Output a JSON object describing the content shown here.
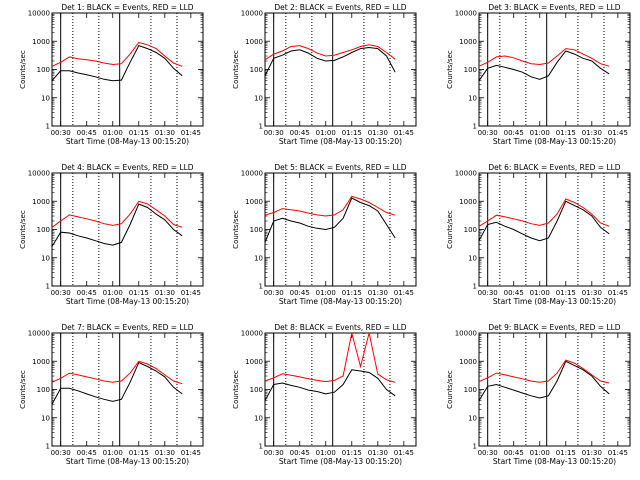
{
  "figure": {
    "ylabel": "Counts/sec",
    "xlabel": "Start Time (08-May-13 00:15:20)"
  },
  "colors": {
    "events": "#000000",
    "lld": "#ff0000",
    "axis": "#000000"
  },
  "chart_data": [
    {
      "type": "line",
      "title": "Det 1: BLACK = Events, RED = LLD",
      "ylabel": "Counts/sec",
      "xlabel": "Start Time (08-May-13 00:15:20)",
      "y_scale": "log",
      "ylim": [
        1,
        10000
      ],
      "y_ticks": [
        "1",
        "10",
        "100",
        "1000",
        "10000"
      ],
      "x_ticks": [
        "00:30",
        "00:45",
        "01:00",
        "01:15",
        "01:30",
        "01:45"
      ],
      "x": [
        "00:25",
        "00:30",
        "00:35",
        "00:40",
        "00:45",
        "00:50",
        "00:55",
        "01:00",
        "01:05",
        "01:10",
        "01:15",
        "01:20",
        "01:25",
        "01:30",
        "01:35",
        "01:40"
      ],
      "series": [
        {
          "name": "Events",
          "values": [
            40,
            90,
            90,
            75,
            65,
            55,
            45,
            40,
            42,
            180,
            700,
            550,
            400,
            250,
            110,
            60
          ]
        },
        {
          "name": "LLD",
          "values": [
            130,
            180,
            280,
            240,
            220,
            200,
            170,
            150,
            160,
            350,
            900,
            750,
            550,
            300,
            170,
            130
          ]
        }
      ],
      "solid_vlines": [
        "00:30",
        "01:04"
      ],
      "dotted_vlines": [
        "00:37",
        "00:52",
        "01:22",
        "01:37"
      ]
    },
    {
      "type": "line",
      "title": "Det 2: BLACK = Events, RED = LLD",
      "ylabel": "Counts/sec",
      "xlabel": "Start Time (08-May-13 00:15:20)",
      "y_scale": "log",
      "ylim": [
        1,
        10000
      ],
      "y_ticks": [
        "1",
        "10",
        "100",
        "1000",
        "10000"
      ],
      "x_ticks": [
        "00:30",
        "00:45",
        "01:00",
        "01:15",
        "01:30",
        "01:45"
      ],
      "x": [
        "00:25",
        "00:30",
        "00:35",
        "00:40",
        "00:45",
        "00:50",
        "00:55",
        "01:00",
        "01:05",
        "01:10",
        "01:15",
        "01:20",
        "01:25",
        "01:30",
        "01:35",
        "01:40"
      ],
      "series": [
        {
          "name": "Events",
          "values": [
            60,
            250,
            320,
            450,
            500,
            380,
            250,
            200,
            210,
            280,
            400,
            550,
            600,
            550,
            300,
            80
          ]
        },
        {
          "name": "LLD",
          "values": [
            220,
            350,
            450,
            650,
            700,
            550,
            380,
            300,
            320,
            400,
            500,
            650,
            750,
            650,
            400,
            230
          ]
        }
      ],
      "solid_vlines": [
        "00:30",
        "01:04"
      ],
      "dotted_vlines": [
        "00:37",
        "00:52",
        "01:22",
        "01:37"
      ]
    },
    {
      "type": "line",
      "title": "Det 3: BLACK = Events, RED = LLD",
      "ylabel": "Counts/sec",
      "xlabel": "Start Time (08-May-13 00:15:20)",
      "y_scale": "log",
      "ylim": [
        1,
        10000
      ],
      "y_ticks": [
        "1",
        "10",
        "100",
        "1000",
        "10000"
      ],
      "x_ticks": [
        "00:30",
        "00:45",
        "01:00",
        "01:15",
        "01:30",
        "01:45"
      ],
      "x": [
        "00:25",
        "00:30",
        "00:35",
        "00:40",
        "00:45",
        "00:50",
        "00:55",
        "01:00",
        "01:05",
        "01:10",
        "01:15",
        "01:20",
        "01:25",
        "01:30",
        "01:35",
        "01:40"
      ],
      "series": [
        {
          "name": "Events",
          "values": [
            40,
            110,
            140,
            120,
            100,
            80,
            55,
            45,
            60,
            180,
            450,
            350,
            250,
            200,
            110,
            70
          ]
        },
        {
          "name": "LLD",
          "values": [
            130,
            180,
            280,
            300,
            260,
            200,
            160,
            150,
            170,
            300,
            550,
            500,
            350,
            250,
            160,
            130
          ]
        }
      ],
      "solid_vlines": [
        "00:30",
        "01:04"
      ],
      "dotted_vlines": [
        "00:37",
        "00:52",
        "01:22",
        "01:37"
      ]
    },
    {
      "type": "line",
      "title": "Det 4: BLACK = Events, RED = LLD",
      "ylabel": "Counts/sec",
      "xlabel": "Start Time (08-May-13 00:15:20)",
      "y_scale": "log",
      "ylim": [
        1,
        10000
      ],
      "y_ticks": [
        "1",
        "10",
        "100",
        "1000",
        "10000"
      ],
      "x_ticks": [
        "00:30",
        "00:45",
        "01:00",
        "01:15",
        "01:30",
        "01:45"
      ],
      "x": [
        "00:25",
        "00:30",
        "00:35",
        "00:40",
        "00:45",
        "00:50",
        "00:55",
        "01:00",
        "01:05",
        "01:10",
        "01:15",
        "01:20",
        "01:25",
        "01:30",
        "01:35",
        "01:40"
      ],
      "series": [
        {
          "name": "Events",
          "values": [
            25,
            80,
            75,
            60,
            50,
            40,
            32,
            28,
            35,
            150,
            800,
            600,
            350,
            220,
            100,
            60
          ]
        },
        {
          "name": "LLD",
          "values": [
            120,
            200,
            330,
            280,
            240,
            200,
            160,
            140,
            160,
            350,
            1000,
            800,
            500,
            300,
            150,
            120
          ]
        }
      ],
      "solid_vlines": [
        "00:30",
        "01:04"
      ],
      "dotted_vlines": [
        "00:37",
        "00:52",
        "01:22",
        "01:37"
      ]
    },
    {
      "type": "line",
      "title": "Det 5: BLACK = Events, RED = LLD",
      "ylabel": "Counts/sec",
      "xlabel": "Start Time (08-May-13 00:15:20)",
      "y_scale": "log",
      "ylim": [
        1,
        10000
      ],
      "y_ticks": [
        "1",
        "10",
        "100",
        "1000",
        "10000"
      ],
      "x_ticks": [
        "00:30",
        "00:45",
        "01:00",
        "01:15",
        "01:30",
        "01:45"
      ],
      "x": [
        "00:25",
        "00:30",
        "00:35",
        "00:40",
        "00:45",
        "00:50",
        "00:55",
        "01:00",
        "01:05",
        "01:10",
        "01:15",
        "01:20",
        "01:25",
        "01:30",
        "01:35",
        "01:40"
      ],
      "series": [
        {
          "name": "Events",
          "values": [
            35,
            200,
            250,
            200,
            170,
            130,
            110,
            100,
            120,
            250,
            1300,
            900,
            700,
            450,
            150,
            50
          ]
        },
        {
          "name": "LLD",
          "values": [
            320,
            400,
            550,
            500,
            450,
            380,
            330,
            300,
            330,
            500,
            1500,
            1200,
            900,
            600,
            400,
            320
          ]
        }
      ],
      "solid_vlines": [
        "00:30",
        "01:04"
      ],
      "dotted_vlines": [
        "00:37",
        "00:52",
        "01:22",
        "01:37"
      ]
    },
    {
      "type": "line",
      "title": "Det 6: BLACK = Events, RED = LLD",
      "ylabel": "Counts/sec",
      "xlabel": "Start Time (08-May-13 00:15:20)",
      "y_scale": "log",
      "ylim": [
        1,
        10000
      ],
      "y_ticks": [
        "1",
        "10",
        "100",
        "1000",
        "10000"
      ],
      "x_ticks": [
        "00:30",
        "00:45",
        "01:00",
        "01:15",
        "01:30",
        "01:45"
      ],
      "x": [
        "00:25",
        "00:30",
        "00:35",
        "00:40",
        "00:45",
        "00:50",
        "00:55",
        "01:00",
        "01:05",
        "01:10",
        "01:15",
        "01:20",
        "01:25",
        "01:30",
        "01:35",
        "01:40"
      ],
      "series": [
        {
          "name": "Events",
          "values": [
            40,
            150,
            180,
            130,
            100,
            70,
            50,
            40,
            50,
            200,
            1000,
            700,
            500,
            300,
            120,
            70
          ]
        },
        {
          "name": "LLD",
          "values": [
            130,
            200,
            320,
            280,
            240,
            200,
            160,
            140,
            170,
            350,
            1200,
            900,
            600,
            350,
            170,
            130
          ]
        }
      ],
      "solid_vlines": [
        "00:30",
        "01:04"
      ],
      "dotted_vlines": [
        "00:37",
        "00:52",
        "01:22",
        "01:37"
      ]
    },
    {
      "type": "line",
      "title": "Det 7: BLACK = Events, RED = LLD",
      "ylabel": "Counts/sec",
      "xlabel": "Start Time (08-May-13 00:15:20)",
      "y_scale": "log",
      "ylim": [
        1,
        10000
      ],
      "y_ticks": [
        "1",
        "10",
        "100",
        "1000",
        "10000"
      ],
      "x_ticks": [
        "00:30",
        "00:45",
        "01:00",
        "01:15",
        "01:30",
        "01:45"
      ],
      "x": [
        "00:25",
        "00:30",
        "00:35",
        "00:40",
        "00:45",
        "00:50",
        "00:55",
        "01:00",
        "01:05",
        "01:10",
        "01:15",
        "01:20",
        "01:25",
        "01:30",
        "01:35",
        "01:40"
      ],
      "series": [
        {
          "name": "Events",
          "values": [
            30,
            110,
            110,
            90,
            70,
            55,
            45,
            38,
            45,
            180,
            900,
            650,
            450,
            280,
            120,
            70
          ]
        },
        {
          "name": "LLD",
          "values": [
            180,
            250,
            380,
            330,
            280,
            240,
            200,
            180,
            200,
            380,
            1000,
            800,
            550,
            330,
            200,
            160
          ]
        }
      ],
      "solid_vlines": [
        "00:30",
        "01:04"
      ],
      "dotted_vlines": [
        "00:37",
        "00:52",
        "01:22",
        "01:37"
      ]
    },
    {
      "type": "line",
      "title": "Det 8: BLACK = Events, RED = LLD",
      "ylabel": "Counts/sec",
      "xlabel": "Start Time (08-May-13 00:15:20)",
      "y_scale": "log",
      "ylim": [
        1,
        10000
      ],
      "y_ticks": [
        "1",
        "10",
        "100",
        "1000",
        "10000"
      ],
      "x_ticks": [
        "00:30",
        "00:45",
        "01:00",
        "01:15",
        "01:30",
        "01:45"
      ],
      "x": [
        "00:25",
        "00:30",
        "00:35",
        "00:40",
        "00:45",
        "00:50",
        "00:55",
        "01:00",
        "01:05",
        "01:10",
        "01:15",
        "01:20",
        "01:25",
        "01:30",
        "01:35",
        "01:40"
      ],
      "series": [
        {
          "name": "Events",
          "values": [
            40,
            150,
            170,
            140,
            120,
            95,
            85,
            70,
            80,
            150,
            500,
            450,
            400,
            250,
            100,
            60
          ]
        },
        {
          "name": "LLD",
          "values": [
            200,
            260,
            360,
            320,
            280,
            240,
            210,
            190,
            210,
            300,
            10000,
            650,
            10000,
            350,
            220,
            180
          ]
        }
      ],
      "solid_vlines": [
        "00:30",
        "01:04"
      ],
      "dotted_vlines": [
        "00:37",
        "00:52",
        "01:22",
        "01:37"
      ]
    },
    {
      "type": "line",
      "title": "Det 9: BLACK = Events, RED = LLD",
      "ylabel": "Counts/sec",
      "xlabel": "Start Time (08-May-13 00:15:20)",
      "y_scale": "log",
      "ylim": [
        1,
        10000
      ],
      "y_ticks": [
        "1",
        "10",
        "100",
        "1000",
        "10000"
      ],
      "x_ticks": [
        "00:30",
        "00:45",
        "01:00",
        "01:15",
        "01:30",
        "01:45"
      ],
      "x": [
        "00:25",
        "00:30",
        "00:35",
        "00:40",
        "00:45",
        "00:50",
        "00:55",
        "01:00",
        "01:05",
        "01:10",
        "01:15",
        "01:20",
        "01:25",
        "01:30",
        "01:35",
        "01:40"
      ],
      "series": [
        {
          "name": "Events",
          "values": [
            40,
            130,
            150,
            120,
            95,
            75,
            60,
            50,
            60,
            200,
            1000,
            700,
            500,
            300,
            130,
            70
          ]
        },
        {
          "name": "LLD",
          "values": [
            190,
            260,
            380,
            330,
            280,
            240,
            200,
            180,
            200,
            380,
            1100,
            850,
            550,
            330,
            200,
            170
          ]
        }
      ],
      "solid_vlines": [
        "00:30",
        "01:04"
      ],
      "dotted_vlines": [
        "00:37",
        "00:52",
        "01:22",
        "01:37"
      ]
    }
  ]
}
